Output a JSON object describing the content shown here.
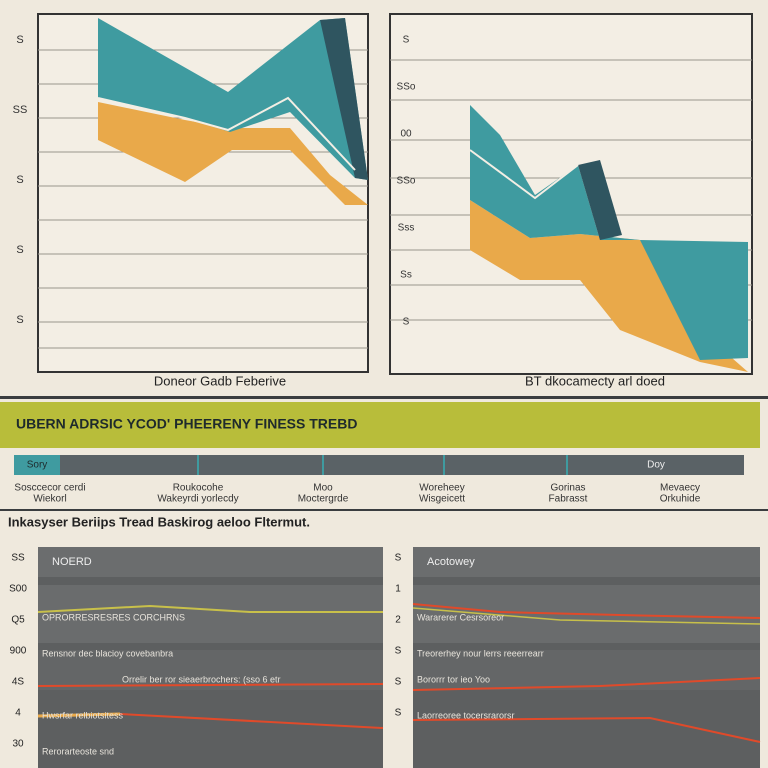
{
  "top_charts": [
    {
      "caption": "Doneor Gadb Feberive",
      "axis_labels": [
        "S",
        "SS",
        "S",
        "S",
        "S"
      ]
    },
    {
      "caption": "BT dkocamecty arl doed",
      "axis_labels": [
        "S",
        "SSo",
        "00",
        "SSo",
        "Sss",
        "Ss",
        "S"
      ]
    }
  ],
  "banner": "UBERN ADRSIC YCOD' PHEERENY FINESS TREBD",
  "timeline": {
    "start": "Sory",
    "end": "Doy",
    "labels": [
      [
        "Sosccecor cerdi",
        "Wiekorl"
      ],
      [
        "Roukocohe",
        "Wakeyrdi yorlecdy"
      ],
      [
        "Moo",
        "Moctergrde"
      ],
      [
        "Woreheey",
        "Wisgeicett"
      ],
      [
        "Gorinas",
        "Fabrasst"
      ],
      [
        "Mevaecy",
        "Orkuhide"
      ]
    ]
  },
  "heading": "Inkasyser Beriips Tread Baskirog aeloo Fltermut.",
  "panels": [
    {
      "title": "NOERD",
      "axis_labels": [
        "SS",
        "S00",
        "Q5",
        "900",
        "4S",
        "4",
        "30"
      ],
      "line_labels": [
        "OPRORRESRESRES CORCHRNS",
        "Rensnor dec blacioy covebanbra",
        "Orrelir ber ror sieaerbrochers: (sso 6 etr",
        "Hwsrfar relbiotsitess",
        "Rerorarteoste snd"
      ]
    },
    {
      "title": "Acotowey",
      "axis_labels": [
        "S",
        "1",
        "2",
        "S",
        "S",
        "S"
      ],
      "line_labels": [
        "Wararerer Cesrsoreor",
        "Treorerhey nour lerrs reeerrearr",
        "Bororrr tor ieo Yoo",
        "Laorreoree tocersrarorsr"
      ]
    }
  ]
}
